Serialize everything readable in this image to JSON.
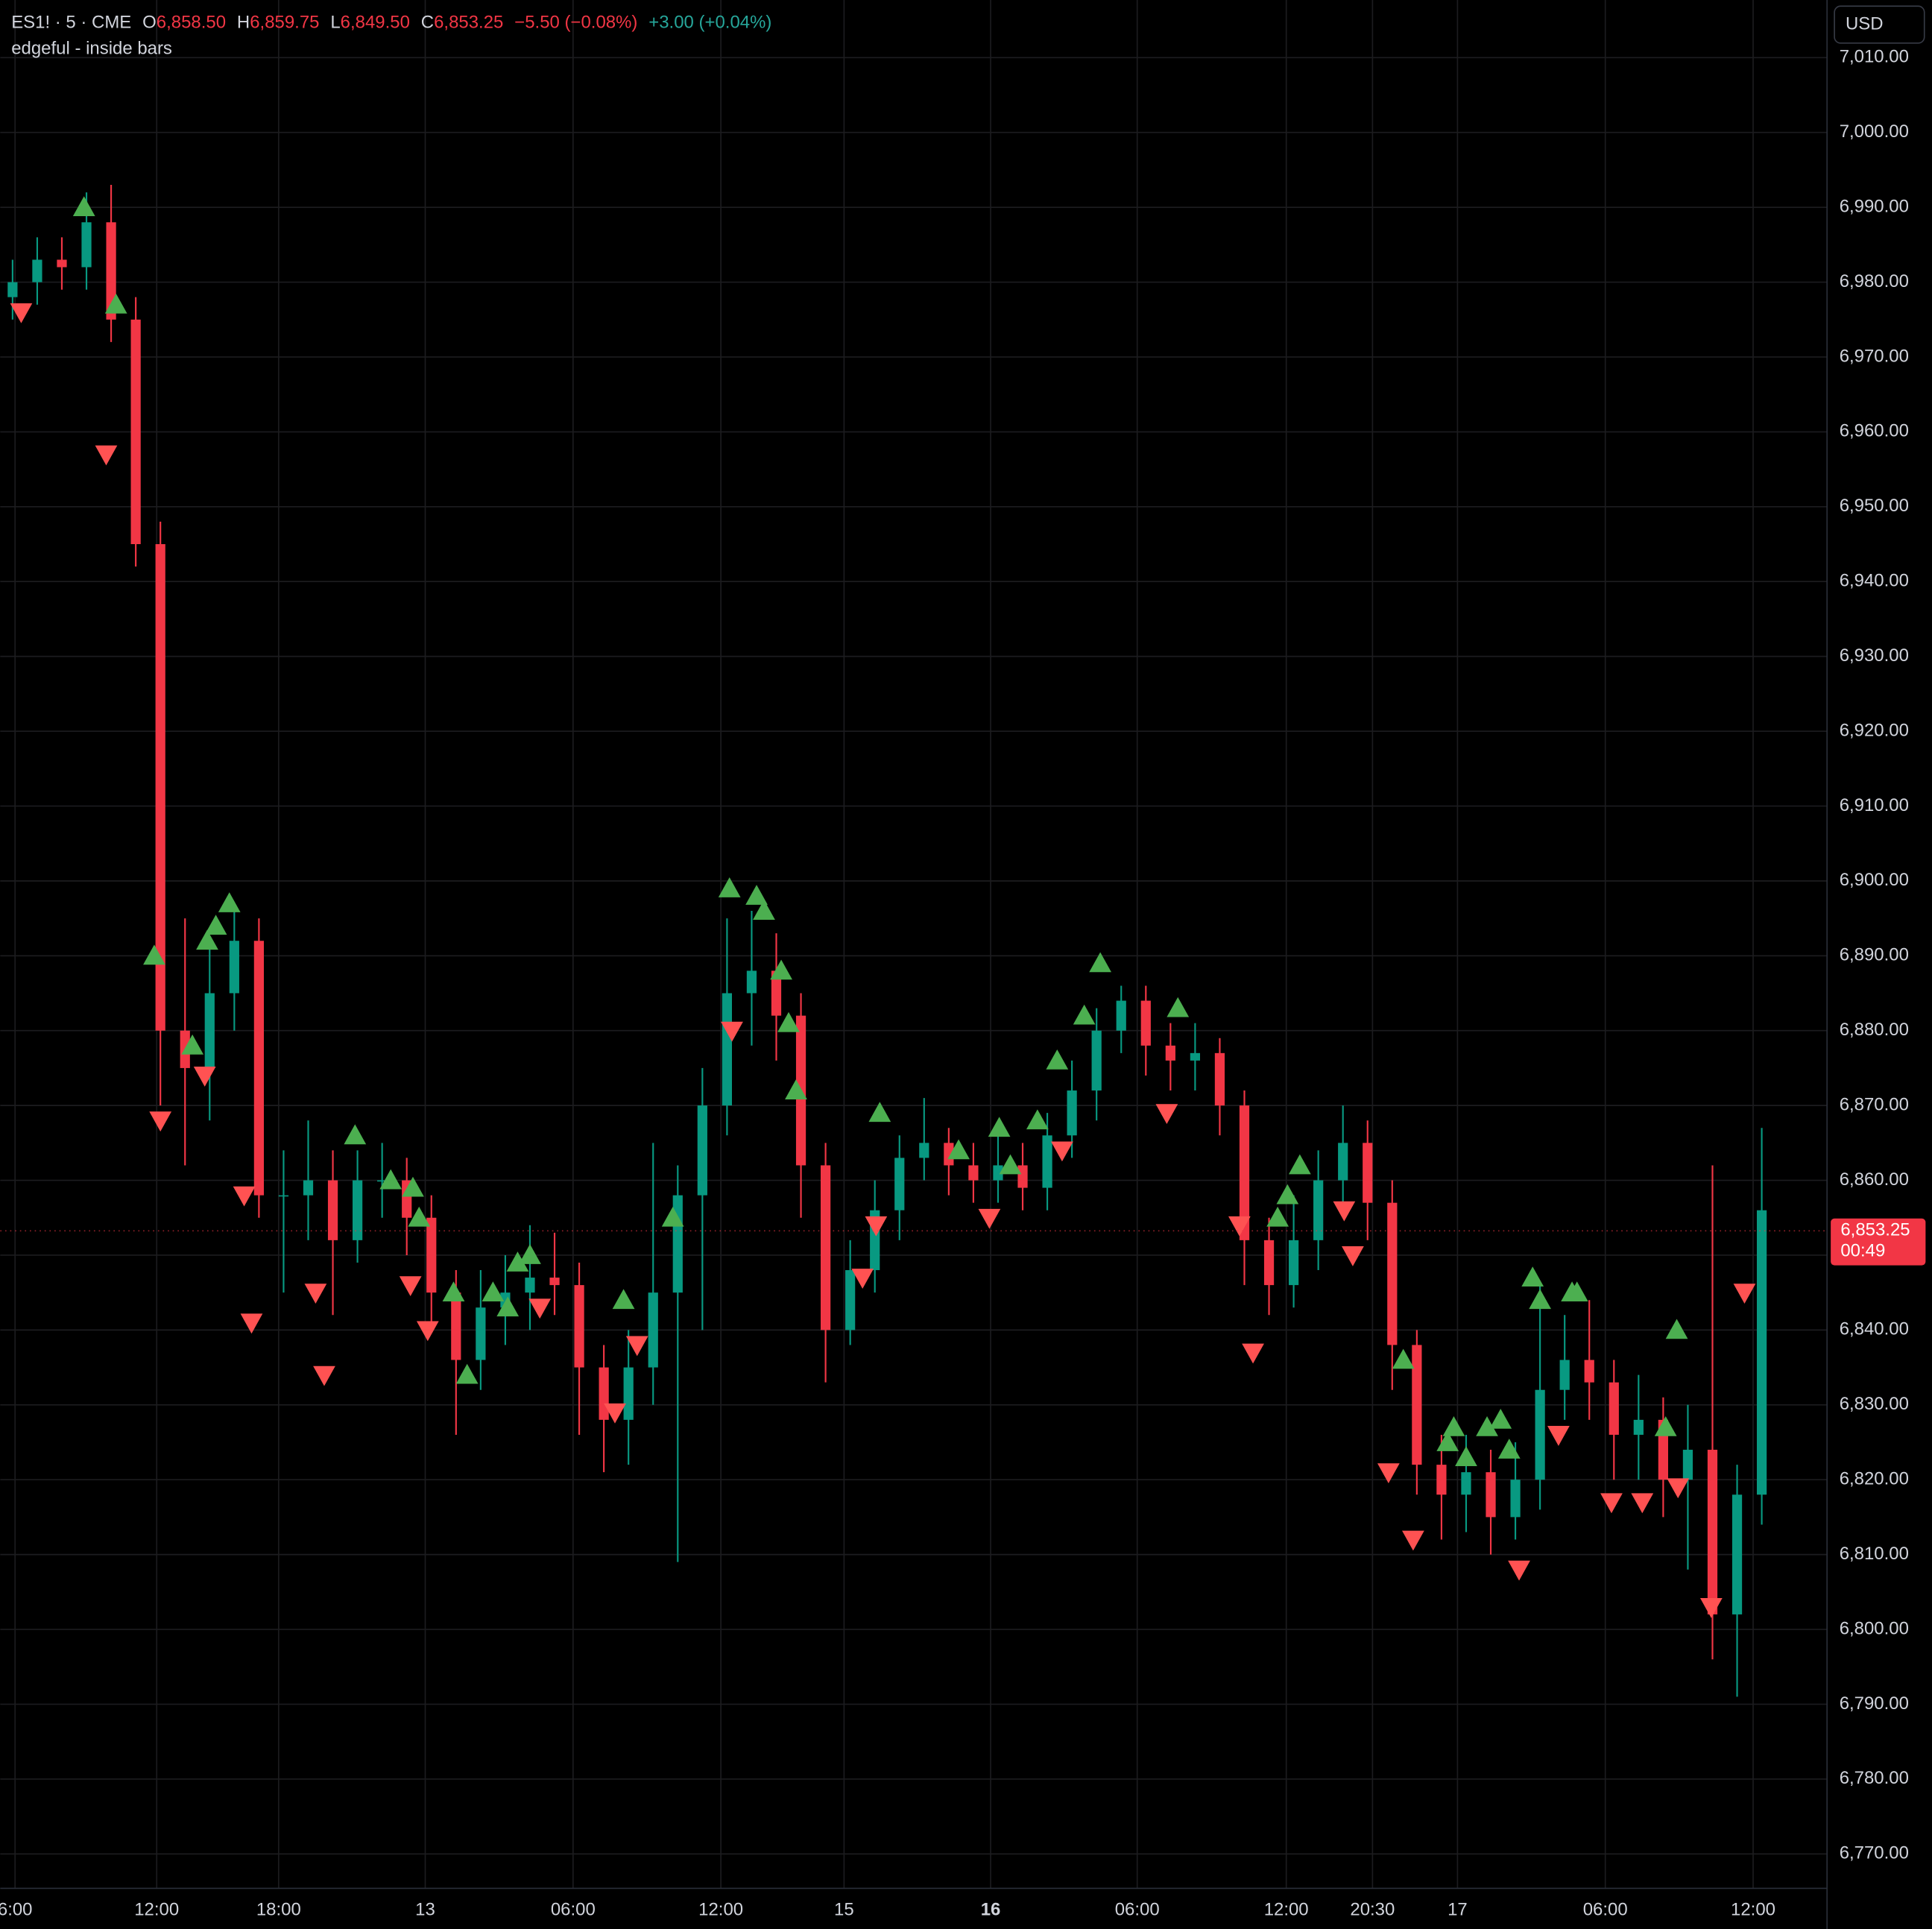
{
  "header": {
    "symbol": "ES1! · 5 · CME",
    "o_label": "O",
    "open": "6,858.50",
    "h_label": "H",
    "high": "6,859.75",
    "l_label": "L",
    "low": "6,849.50",
    "c_label": "C",
    "close": "6,853.25",
    "change": "−5.50 (−0.08%)",
    "extended_change": "+3.00 (+0.04%)",
    "indicator": "edgeful - inside bars",
    "currency": "USD",
    "last_price": "6,853.25",
    "countdown": "00:49"
  },
  "chart_data": {
    "type": "candlestick",
    "up_color": "#089981",
    "down_color": "#f23645",
    "grid": true,
    "xlim": [
      0,
      148.3
    ],
    "ylim": [
      6765.4,
      7017.7
    ],
    "last_price": 6853.25,
    "xticks": [
      {
        "value": 1.2,
        "label": "6:00"
      },
      {
        "value": 12.7,
        "label": "12:00"
      },
      {
        "value": 22.6,
        "label": "18:00"
      },
      {
        "value": 34.5,
        "label": "13"
      },
      {
        "value": 46.5,
        "label": "06:00"
      },
      {
        "value": 58.5,
        "label": "12:00"
      },
      {
        "value": 68.5,
        "label": "15"
      },
      {
        "value": 80.4,
        "label": "16",
        "bold": true
      },
      {
        "value": 92.3,
        "label": "06:00"
      },
      {
        "value": 104.4,
        "label": "12:00"
      },
      {
        "value": 111.4,
        "label": "20:30"
      },
      {
        "value": 118.3,
        "label": "17"
      },
      {
        "value": 130.3,
        "label": "06:00"
      },
      {
        "value": 142.3,
        "label": "12:00"
      }
    ],
    "yticks": [
      {
        "value": 6770,
        "label": "6,770.00"
      },
      {
        "value": 6780,
        "label": "6,780.00"
      },
      {
        "value": 6790,
        "label": "6,790.00"
      },
      {
        "value": 6800,
        "label": "6,800.00"
      },
      {
        "value": 6810,
        "label": "6,810.00"
      },
      {
        "value": 6820,
        "label": "6,820.00"
      },
      {
        "value": 6830,
        "label": "6,830.00"
      },
      {
        "value": 6840,
        "label": "6,840.00"
      },
      {
        "value": 6850,
        "label": "6,850.00"
      },
      {
        "value": 6860,
        "label": "6,860.00"
      },
      {
        "value": 6870,
        "label": "6,870.00"
      },
      {
        "value": 6880,
        "label": "6,880.00"
      },
      {
        "value": 6890,
        "label": "6,890.00"
      },
      {
        "value": 6900,
        "label": "6,900.00"
      },
      {
        "value": 6910,
        "label": "6,910.00"
      },
      {
        "value": 6920,
        "label": "6,920.00"
      },
      {
        "value": 6930,
        "label": "6,930.00"
      },
      {
        "value": 6940,
        "label": "6,940.00"
      },
      {
        "value": 6950,
        "label": "6,950.00"
      },
      {
        "value": 6960,
        "label": "6,960.00"
      },
      {
        "value": 6970,
        "label": "6,970.00"
      },
      {
        "value": 6980,
        "label": "6,980.00"
      },
      {
        "value": 6990,
        "label": "6,990.00"
      },
      {
        "value": 7000,
        "label": "7,000.00"
      },
      {
        "value": 7010,
        "label": "7,010.00"
      }
    ],
    "x": [
      1,
      3,
      5,
      7,
      9,
      11,
      13,
      15,
      17,
      19,
      21,
      23,
      25,
      27,
      29,
      31,
      33,
      35,
      37,
      39,
      41,
      43,
      45,
      47,
      49,
      51,
      53,
      55,
      57,
      59,
      61,
      63,
      65,
      67,
      69,
      71,
      73,
      75,
      77,
      79,
      81,
      83,
      85,
      87,
      89,
      91,
      93,
      95,
      97,
      99,
      101,
      103,
      105,
      107,
      109,
      111,
      113,
      115,
      117,
      119,
      121,
      123,
      125,
      127,
      129,
      131,
      133,
      135,
      137,
      139,
      141,
      143
    ],
    "open": [
      6978,
      6980,
      6983,
      6982,
      6988,
      6975,
      6945,
      6880,
      6875,
      6885,
      6892,
      6858,
      6858,
      6860,
      6852,
      6860,
      6860,
      6855,
      6845,
      6836,
      6843,
      6845,
      6847,
      6846,
      6835,
      6828,
      6835,
      6845,
      6858,
      6870,
      6885,
      6888,
      6882,
      6862,
      6840,
      6848,
      6856,
      6863,
      6865,
      6862,
      6860,
      6862,
      6859,
      6866,
      6872,
      6880,
      6884,
      6878,
      6876,
      6877,
      6870,
      6852,
      6846,
      6852,
      6860,
      6865,
      6857,
      6838,
      6822,
      6818,
      6821,
      6815,
      6820,
      6832,
      6836,
      6833,
      6826,
      6828,
      6820,
      6824,
      6802,
      6818
    ],
    "high": [
      6983,
      6986,
      6986,
      6992,
      6993,
      6978,
      6948,
      6895,
      6892,
      6897,
      6895,
      6864,
      6868,
      6864,
      6864,
      6865,
      6863,
      6858,
      6848,
      6848,
      6850,
      6854,
      6853,
      6849,
      6838,
      6840,
      6865,
      6862,
      6875,
      6895,
      6896,
      6893,
      6885,
      6865,
      6852,
      6860,
      6866,
      6871,
      6867,
      6865,
      6866,
      6865,
      6869,
      6876,
      6883,
      6886,
      6886,
      6881,
      6881,
      6879,
      6872,
      6855,
      6858,
      6864,
      6870,
      6868,
      6860,
      6840,
      6826,
      6826,
      6824,
      6825,
      6846,
      6842,
      6844,
      6836,
      6834,
      6831,
      6830,
      6862,
      6822,
      6867
    ],
    "low": [
      6975,
      6977,
      6979,
      6979,
      6972,
      6942,
      6870,
      6862,
      6868,
      6880,
      6855,
      6845,
      6852,
      6842,
      6849,
      6855,
      6850,
      6840,
      6826,
      6832,
      6838,
      6840,
      6842,
      6826,
      6821,
      6822,
      6830,
      6809,
      6840,
      6866,
      6878,
      6876,
      6855,
      6833,
      6838,
      6845,
      6852,
      6860,
      6858,
      6857,
      6857,
      6856,
      6856,
      6863,
      6868,
      6877,
      6874,
      6872,
      6872,
      6866,
      6846,
      6842,
      6843,
      6848,
      6857,
      6852,
      6832,
      6818,
      6812,
      6813,
      6810,
      6812,
      6816,
      6828,
      6828,
      6820,
      6820,
      6815,
      6808,
      6796,
      6791,
      6814
    ],
    "close": [
      6980,
      6983,
      6982,
      6988,
      6975,
      6945,
      6880,
      6875,
      6885,
      6892,
      6858,
      6858,
      6860,
      6852,
      6860,
      6860,
      6855,
      6845,
      6836,
      6843,
      6845,
      6847,
      6846,
      6835,
      6828,
      6835,
      6845,
      6858,
      6870,
      6885,
      6888,
      6882,
      6862,
      6840,
      6848,
      6856,
      6863,
      6865,
      6862,
      6860,
      6862,
      6859,
      6866,
      6872,
      6880,
      6884,
      6878,
      6876,
      6877,
      6870,
      6852,
      6846,
      6852,
      6860,
      6865,
      6857,
      6838,
      6822,
      6818,
      6821,
      6815,
      6820,
      6832,
      6836,
      6833,
      6826,
      6828,
      6820,
      6824,
      6802,
      6818,
      6856
    ],
    "up_markers": {
      "color": "#4caf50",
      "x": [
        6.8,
        9.4,
        12.5,
        15.6,
        16.8,
        17.5,
        18.6,
        28.8,
        31.7,
        33.5,
        34,
        36.8,
        37.9,
        40,
        41.2,
        42,
        43,
        50.6,
        54.6,
        59.2,
        61.4,
        62,
        63.4,
        64,
        64.6,
        71.4,
        77.8,
        81.1,
        82,
        84.2,
        85.8,
        88,
        89.3,
        95.6,
        103.7,
        104.5,
        105.5,
        113.9,
        117.5,
        118,
        119,
        120.7,
        121.8,
        122.5,
        124.4,
        125,
        127.6,
        128,
        135.2,
        136.1
      ],
      "y": [
        6990,
        6977,
        6890,
        6878,
        6892,
        6894,
        6897,
        6866,
        6860,
        6859,
        6855,
        6845,
        6834,
        6845,
        6843,
        6849,
        6850,
        6844,
        6855,
        6899,
        6898,
        6896,
        6888,
        6881,
        6872,
        6869,
        6864,
        6867,
        6862,
        6868,
        6876,
        6882,
        6889,
        6883,
        6855,
        6858,
        6862,
        6836,
        6825,
        6827,
        6823,
        6827,
        6828,
        6824,
        6847,
        6844,
        6845,
        6845,
        6827,
        6840
      ]
    },
    "down_markers": {
      "color": "#ff5252",
      "x": [
        1.7,
        8.6,
        13,
        16.6,
        19.8,
        20.4,
        25.6,
        26.3,
        33.3,
        34.7,
        43.8,
        49.9,
        51.7,
        59.4,
        70,
        71.1,
        80.3,
        86.2,
        94.7,
        100.6,
        101.7,
        109.1,
        109.8,
        112.7,
        114.7,
        123.3,
        126.5,
        130.8,
        133.3,
        136.2,
        138.9,
        141.6
      ],
      "y": [
        6976,
        6957,
        6868,
        6874,
        6858,
        6841,
        6845,
        6834,
        6846,
        6840,
        6843,
        6829,
        6838,
        6880,
        6847,
        6854,
        6855,
        6864,
        6869,
        6854,
        6837,
        6856,
        6850,
        6821,
        6812,
        6808,
        6826,
        6817,
        6817,
        6819,
        6803,
        6845
      ]
    }
  }
}
